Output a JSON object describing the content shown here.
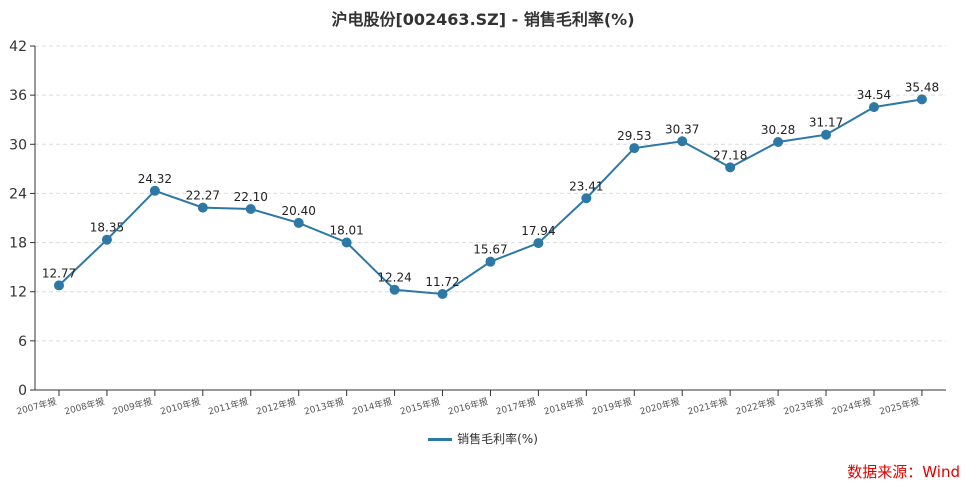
{
  "chart_data": {
    "type": "line",
    "title": "沪电股份[002463.SZ] - 销售毛利率(%)",
    "categories": [
      "2007年报",
      "2008年报",
      "2009年报",
      "2010年报",
      "2011年报",
      "2012年报",
      "2013年报",
      "2014年报",
      "2015年报",
      "2016年报",
      "2017年报",
      "2018年报",
      "2019年报",
      "2020年报",
      "2021年报",
      "2022年报",
      "2023年报",
      "2024年报",
      "2025年报"
    ],
    "series": [
      {
        "name": "销售毛利率(%)",
        "color": "#2e78a6",
        "values": [
          12.77,
          18.35,
          24.32,
          22.27,
          22.1,
          20.4,
          18.01,
          12.24,
          11.72,
          15.67,
          17.94,
          23.41,
          29.53,
          30.37,
          27.18,
          30.28,
          31.17,
          34.54,
          35.48
        ]
      }
    ],
    "ylim": [
      0,
      42
    ],
    "yticks": [
      0,
      6,
      12,
      18,
      24,
      30,
      36,
      42
    ],
    "grid": true,
    "legend": "bottom"
  },
  "source": "数据来源：Wind"
}
